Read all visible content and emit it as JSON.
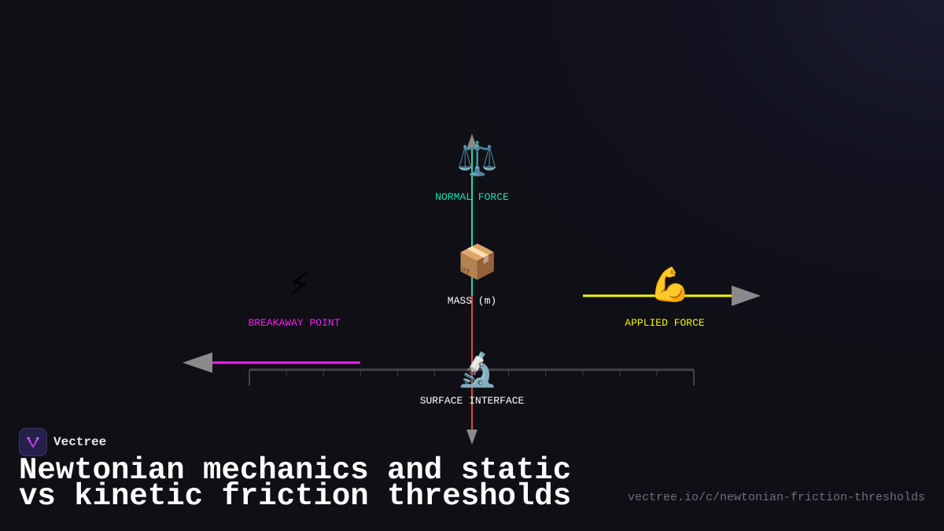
{
  "diagram": {
    "nodes": [
      {
        "id": "normal",
        "label": "NORMAL FORCE",
        "icon": "balance-scale-icon",
        "glyph": "⚖️",
        "color": "#19e0b0"
      },
      {
        "id": "mass",
        "label": "MASS (m)",
        "icon": "package-icon",
        "glyph": "📦",
        "color": "#ffffff"
      },
      {
        "id": "breakaway",
        "label": "BREAKAWAY POINT",
        "icon": "lightning-icon",
        "glyph": "⚡",
        "color": "#ee22ee"
      },
      {
        "id": "applied",
        "label": "APPLIED FORCE",
        "icon": "flexed-biceps-icon",
        "glyph": "💪",
        "color": "#f5f500"
      },
      {
        "id": "surface",
        "label": "SURFACE INTERFACE",
        "icon": "microscope-icon",
        "glyph": "🔬",
        "color": "#ffffff"
      }
    ],
    "colors": {
      "normal_vector": "#19e0b0",
      "weight_vector": "#e04848",
      "applied_vector": "#f5f500",
      "friction_vector": "#ee22ee",
      "arrowhead": "#8a8a8a",
      "axis": "#444444"
    }
  },
  "brand": {
    "name": "Vectree",
    "logo": "vectree-logo-icon"
  },
  "title": "Newtonian mechanics and static vs kinetic friction thresholds",
  "url": "vectree.io/c/newtonian-friction-thresholds"
}
